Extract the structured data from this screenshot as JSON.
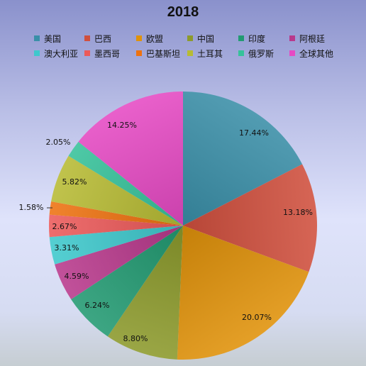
{
  "chart_data": {
    "type": "pie",
    "title": "2018",
    "legend_position": "top",
    "series": [
      {
        "name": "美国",
        "value": 17.44,
        "label": "17.44%",
        "color": "#3a8fa8"
      },
      {
        "name": "巴西",
        "value": 13.18,
        "label": "13.18%",
        "color": "#d0503e"
      },
      {
        "name": "欧盟",
        "value": 20.07,
        "label": "20.07%",
        "color": "#e0920a"
      },
      {
        "name": "中国",
        "value": 8.8,
        "label": "8.80%",
        "color": "#8c9a2c"
      },
      {
        "name": "印度",
        "value": 6.24,
        "label": "6.24%",
        "color": "#229a72"
      },
      {
        "name": "阿根廷",
        "value": 4.59,
        "label": "4.59%",
        "color": "#b8398c"
      },
      {
        "name": "澳大利亚",
        "value": 3.31,
        "label": "3.31%",
        "color": "#3ec8cc"
      },
      {
        "name": "墨西哥",
        "value": 2.67,
        "label": "2.67%",
        "color": "#ec5a5a"
      },
      {
        "name": "巴基斯坦",
        "value": 1.58,
        "label": "1.58%",
        "color": "#ee7210"
      },
      {
        "name": "土耳其",
        "value": 5.82,
        "label": "5.82%",
        "color": "#b7bb34"
      },
      {
        "name": "俄罗斯",
        "value": 2.05,
        "label": "2.05%",
        "color": "#36c29a"
      },
      {
        "name": "全球其他",
        "value": 14.25,
        "label": "14.25%",
        "color": "#e64ac4"
      }
    ]
  }
}
